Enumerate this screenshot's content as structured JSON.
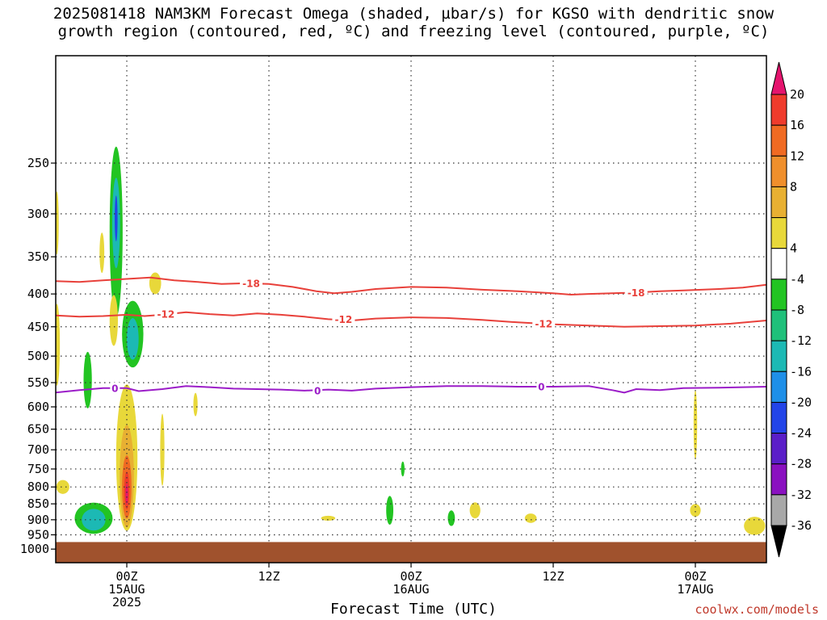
{
  "title_line1": "2025081418 NAM3KM Forecast Omega (shaded, µbar/s) for KGSO with dendritic snow",
  "title_line2": "growth region (contoured, red, ºC) and freezing level (contoured, purple, ºC)",
  "credit": "coolwx.com/models",
  "chart_data": {
    "type": "heatmap",
    "title": "2025081418 NAM3KM Forecast Omega (shaded, µbar/s) for KGSO with dendritic snow growth region (contoured, red, ºC) and freezing level (contoured, purple, ºC)",
    "xlabel": "Forecast Time (UTC)",
    "ylabel": "",
    "x_range_hours": [
      -6,
      54
    ],
    "y_range_hpa": [
      1050,
      170
    ],
    "y_ticks": [
      250,
      300,
      350,
      400,
      450,
      500,
      550,
      600,
      650,
      700,
      750,
      800,
      850,
      900,
      950,
      1000
    ],
    "x_ticks": [
      {
        "hour": 0,
        "lines": [
          "00Z",
          "15AUG",
          "2025"
        ]
      },
      {
        "hour": 12,
        "lines": [
          "12Z"
        ]
      },
      {
        "hour": 24,
        "lines": [
          "00Z",
          "16AUG"
        ]
      },
      {
        "hour": 36,
        "lines": [
          "12Z"
        ]
      },
      {
        "hour": 48,
        "lines": [
          "00Z",
          "17AUG"
        ]
      }
    ],
    "colorbar": {
      "labels": [
        "20",
        "16",
        "12",
        "8",
        "4",
        "-4",
        "-8",
        "-12",
        "-16",
        "-20",
        "-24",
        "-28",
        "-32",
        "-36"
      ],
      "colors_top_to_bottom": [
        "#e5146e",
        "#ef3b2c",
        "#f06a22",
        "#ef8f2c",
        "#e8b032",
        "#e8d83a",
        "#ffffff",
        "#22c422",
        "#1fc07a",
        "#1cb9b4",
        "#1e8fe8",
        "#2244e8",
        "#5a1ec8",
        "#8a10c0",
        "#a8a8a8",
        "#000000"
      ]
    },
    "contours": [
      {
        "label": "-18",
        "color": "#e8403a",
        "points": [
          [
            -6,
            382
          ],
          [
            -4,
            383
          ],
          [
            -2,
            381
          ],
          [
            0,
            379
          ],
          [
            2,
            377
          ],
          [
            4,
            381
          ],
          [
            6,
            383
          ],
          [
            8,
            386
          ],
          [
            10,
            385
          ],
          [
            12,
            386
          ],
          [
            14,
            390
          ],
          [
            16,
            396
          ],
          [
            17.5,
            399
          ],
          [
            19,
            397
          ],
          [
            21,
            393
          ],
          [
            24,
            390
          ],
          [
            27,
            391
          ],
          [
            30,
            394
          ],
          [
            33,
            396
          ],
          [
            36,
            399
          ],
          [
            37.5,
            401
          ],
          [
            39,
            400
          ],
          [
            41,
            399
          ],
          [
            43,
            398
          ],
          [
            45,
            396
          ],
          [
            47,
            395
          ],
          [
            50,
            393
          ],
          [
            52,
            391
          ],
          [
            54,
            387
          ]
        ]
      },
      {
        "label": "-12",
        "color": "#e8403a",
        "points": [
          [
            -6,
            432
          ],
          [
            -4,
            434
          ],
          [
            -2,
            433
          ],
          [
            0,
            431
          ],
          [
            1.5,
            433
          ],
          [
            3,
            431
          ],
          [
            5,
            427
          ],
          [
            7,
            430
          ],
          [
            9,
            432
          ],
          [
            11,
            429
          ],
          [
            13,
            431
          ],
          [
            15,
            434
          ],
          [
            17,
            438
          ],
          [
            19,
            440
          ],
          [
            21,
            437
          ],
          [
            24,
            435
          ],
          [
            27,
            436
          ],
          [
            30,
            439
          ],
          [
            33,
            443
          ],
          [
            36,
            446
          ],
          [
            39,
            448
          ],
          [
            42,
            450
          ],
          [
            45,
            449
          ],
          [
            48,
            448
          ],
          [
            51,
            445
          ],
          [
            54,
            440
          ]
        ]
      },
      {
        "label": "0",
        "color": "#9b1cc8",
        "points": [
          [
            -6,
            570
          ],
          [
            -4,
            565
          ],
          [
            -2,
            561
          ],
          [
            0,
            561
          ],
          [
            1,
            567
          ],
          [
            3,
            563
          ],
          [
            5,
            557
          ],
          [
            7,
            559
          ],
          [
            9,
            562
          ],
          [
            11,
            563
          ],
          [
            13,
            564
          ],
          [
            15,
            566
          ],
          [
            17,
            564
          ],
          [
            19,
            566
          ],
          [
            21,
            562
          ],
          [
            24,
            559
          ],
          [
            27,
            557
          ],
          [
            30,
            557
          ],
          [
            33,
            558
          ],
          [
            36,
            558
          ],
          [
            39,
            557
          ],
          [
            41,
            565
          ],
          [
            42,
            570
          ],
          [
            43,
            563
          ],
          [
            45,
            565
          ],
          [
            47,
            561
          ],
          [
            50,
            560
          ],
          [
            54,
            558
          ]
        ]
      }
    ],
    "contour_labels": [
      {
        "text": "-18",
        "x": 10.5,
        "y": 385,
        "color": "#e8403a"
      },
      {
        "text": "-18",
        "x": 43.0,
        "y": 398,
        "color": "#e8403a"
      },
      {
        "text": "-12",
        "x": 3.3,
        "y": 430,
        "color": "#e8403a"
      },
      {
        "text": "-12",
        "x": 18.3,
        "y": 438,
        "color": "#e8403a"
      },
      {
        "text": "-12",
        "x": 35.2,
        "y": 445,
        "color": "#e8403a"
      },
      {
        "text": "0",
        "x": -1.0,
        "y": 561,
        "color": "#9b1cc8"
      },
      {
        "text": "0",
        "x": 16.1,
        "y": 566,
        "color": "#9b1cc8"
      },
      {
        "text": "0",
        "x": 35.0,
        "y": 558,
        "color": "#9b1cc8"
      }
    ],
    "ground": {
      "color": "#a0522d",
      "top_hpa": 975
    },
    "shaded_blobs": [
      {
        "x": -0.9,
        "y": 320,
        "rx": 0.55,
        "ry": 95,
        "color": "#22c422"
      },
      {
        "x": -0.9,
        "y": 310,
        "rx": 0.33,
        "ry": 50,
        "color": "#1cb9b4"
      },
      {
        "x": -0.9,
        "y": 305,
        "rx": 0.12,
        "ry": 25,
        "color": "#2244e8"
      },
      {
        "x": 0.5,
        "y": 462,
        "rx": 0.9,
        "ry": 55,
        "color": "#22c422"
      },
      {
        "x": 0.5,
        "y": 470,
        "rx": 0.5,
        "ry": 35,
        "color": "#1cb9b4"
      },
      {
        "x": -3.3,
        "y": 545,
        "rx": 0.35,
        "ry": 55,
        "color": "#22c422"
      },
      {
        "x": -1.1,
        "y": 440,
        "rx": 0.35,
        "ry": 40,
        "color": "#e8d83a"
      },
      {
        "x": -2.1,
        "y": 345,
        "rx": 0.2,
        "ry": 25,
        "color": "#e8d83a"
      },
      {
        "x": 2.4,
        "y": 385,
        "rx": 0.5,
        "ry": 15,
        "color": "#e8d83a"
      },
      {
        "x": -5.9,
        "y": 480,
        "rx": 0.25,
        "ry": 70,
        "color": "#e8d83a"
      },
      {
        "x": -5.9,
        "y": 310,
        "rx": 0.15,
        "ry": 35,
        "color": "#e8d83a"
      },
      {
        "x": -5.4,
        "y": 800,
        "rx": 0.55,
        "ry": 20,
        "color": "#e8d83a"
      },
      {
        "x": 0.0,
        "y": 720,
        "rx": 0.9,
        "ry": 185,
        "color": "#e8d83a"
      },
      {
        "x": 0.0,
        "y": 770,
        "rx": 0.6,
        "ry": 140,
        "color": "#e8b032"
      },
      {
        "x": 0.0,
        "y": 800,
        "rx": 0.4,
        "ry": 90,
        "color": "#f06a22"
      },
      {
        "x": 0.0,
        "y": 810,
        "rx": 0.22,
        "ry": 55,
        "color": "#ef3b2c"
      },
      {
        "x": 0.0,
        "y": 820,
        "rx": 0.1,
        "ry": 30,
        "color": "#e5146e"
      },
      {
        "x": 3.0,
        "y": 700,
        "rx": 0.18,
        "ry": 90,
        "color": "#e8d83a"
      },
      {
        "x": 5.8,
        "y": 595,
        "rx": 0.18,
        "ry": 25,
        "color": "#e8d83a"
      },
      {
        "x": -2.8,
        "y": 895,
        "rx": 1.6,
        "ry": 50,
        "color": "#22c422"
      },
      {
        "x": -2.8,
        "y": 900,
        "rx": 1.0,
        "ry": 35,
        "color": "#1cb9b4"
      },
      {
        "x": 22.2,
        "y": 870,
        "rx": 0.3,
        "ry": 45,
        "color": "#22c422"
      },
      {
        "x": 23.3,
        "y": 750,
        "rx": 0.15,
        "ry": 20,
        "color": "#22c422"
      },
      {
        "x": 27.4,
        "y": 895,
        "rx": 0.3,
        "ry": 25,
        "color": "#22c422"
      },
      {
        "x": 29.4,
        "y": 870,
        "rx": 0.45,
        "ry": 25,
        "color": "#e8d83a"
      },
      {
        "x": 17.0,
        "y": 895,
        "rx": 0.6,
        "ry": 8,
        "color": "#e8d83a"
      },
      {
        "x": 34.1,
        "y": 895,
        "rx": 0.5,
        "ry": 15,
        "color": "#e8d83a"
      },
      {
        "x": 48.0,
        "y": 640,
        "rx": 0.15,
        "ry": 80,
        "color": "#e8d83a"
      },
      {
        "x": 48.0,
        "y": 870,
        "rx": 0.45,
        "ry": 20,
        "color": "#e8d83a"
      },
      {
        "x": 53.0,
        "y": 920,
        "rx": 0.9,
        "ry": 30,
        "color": "#e8d83a"
      }
    ]
  }
}
